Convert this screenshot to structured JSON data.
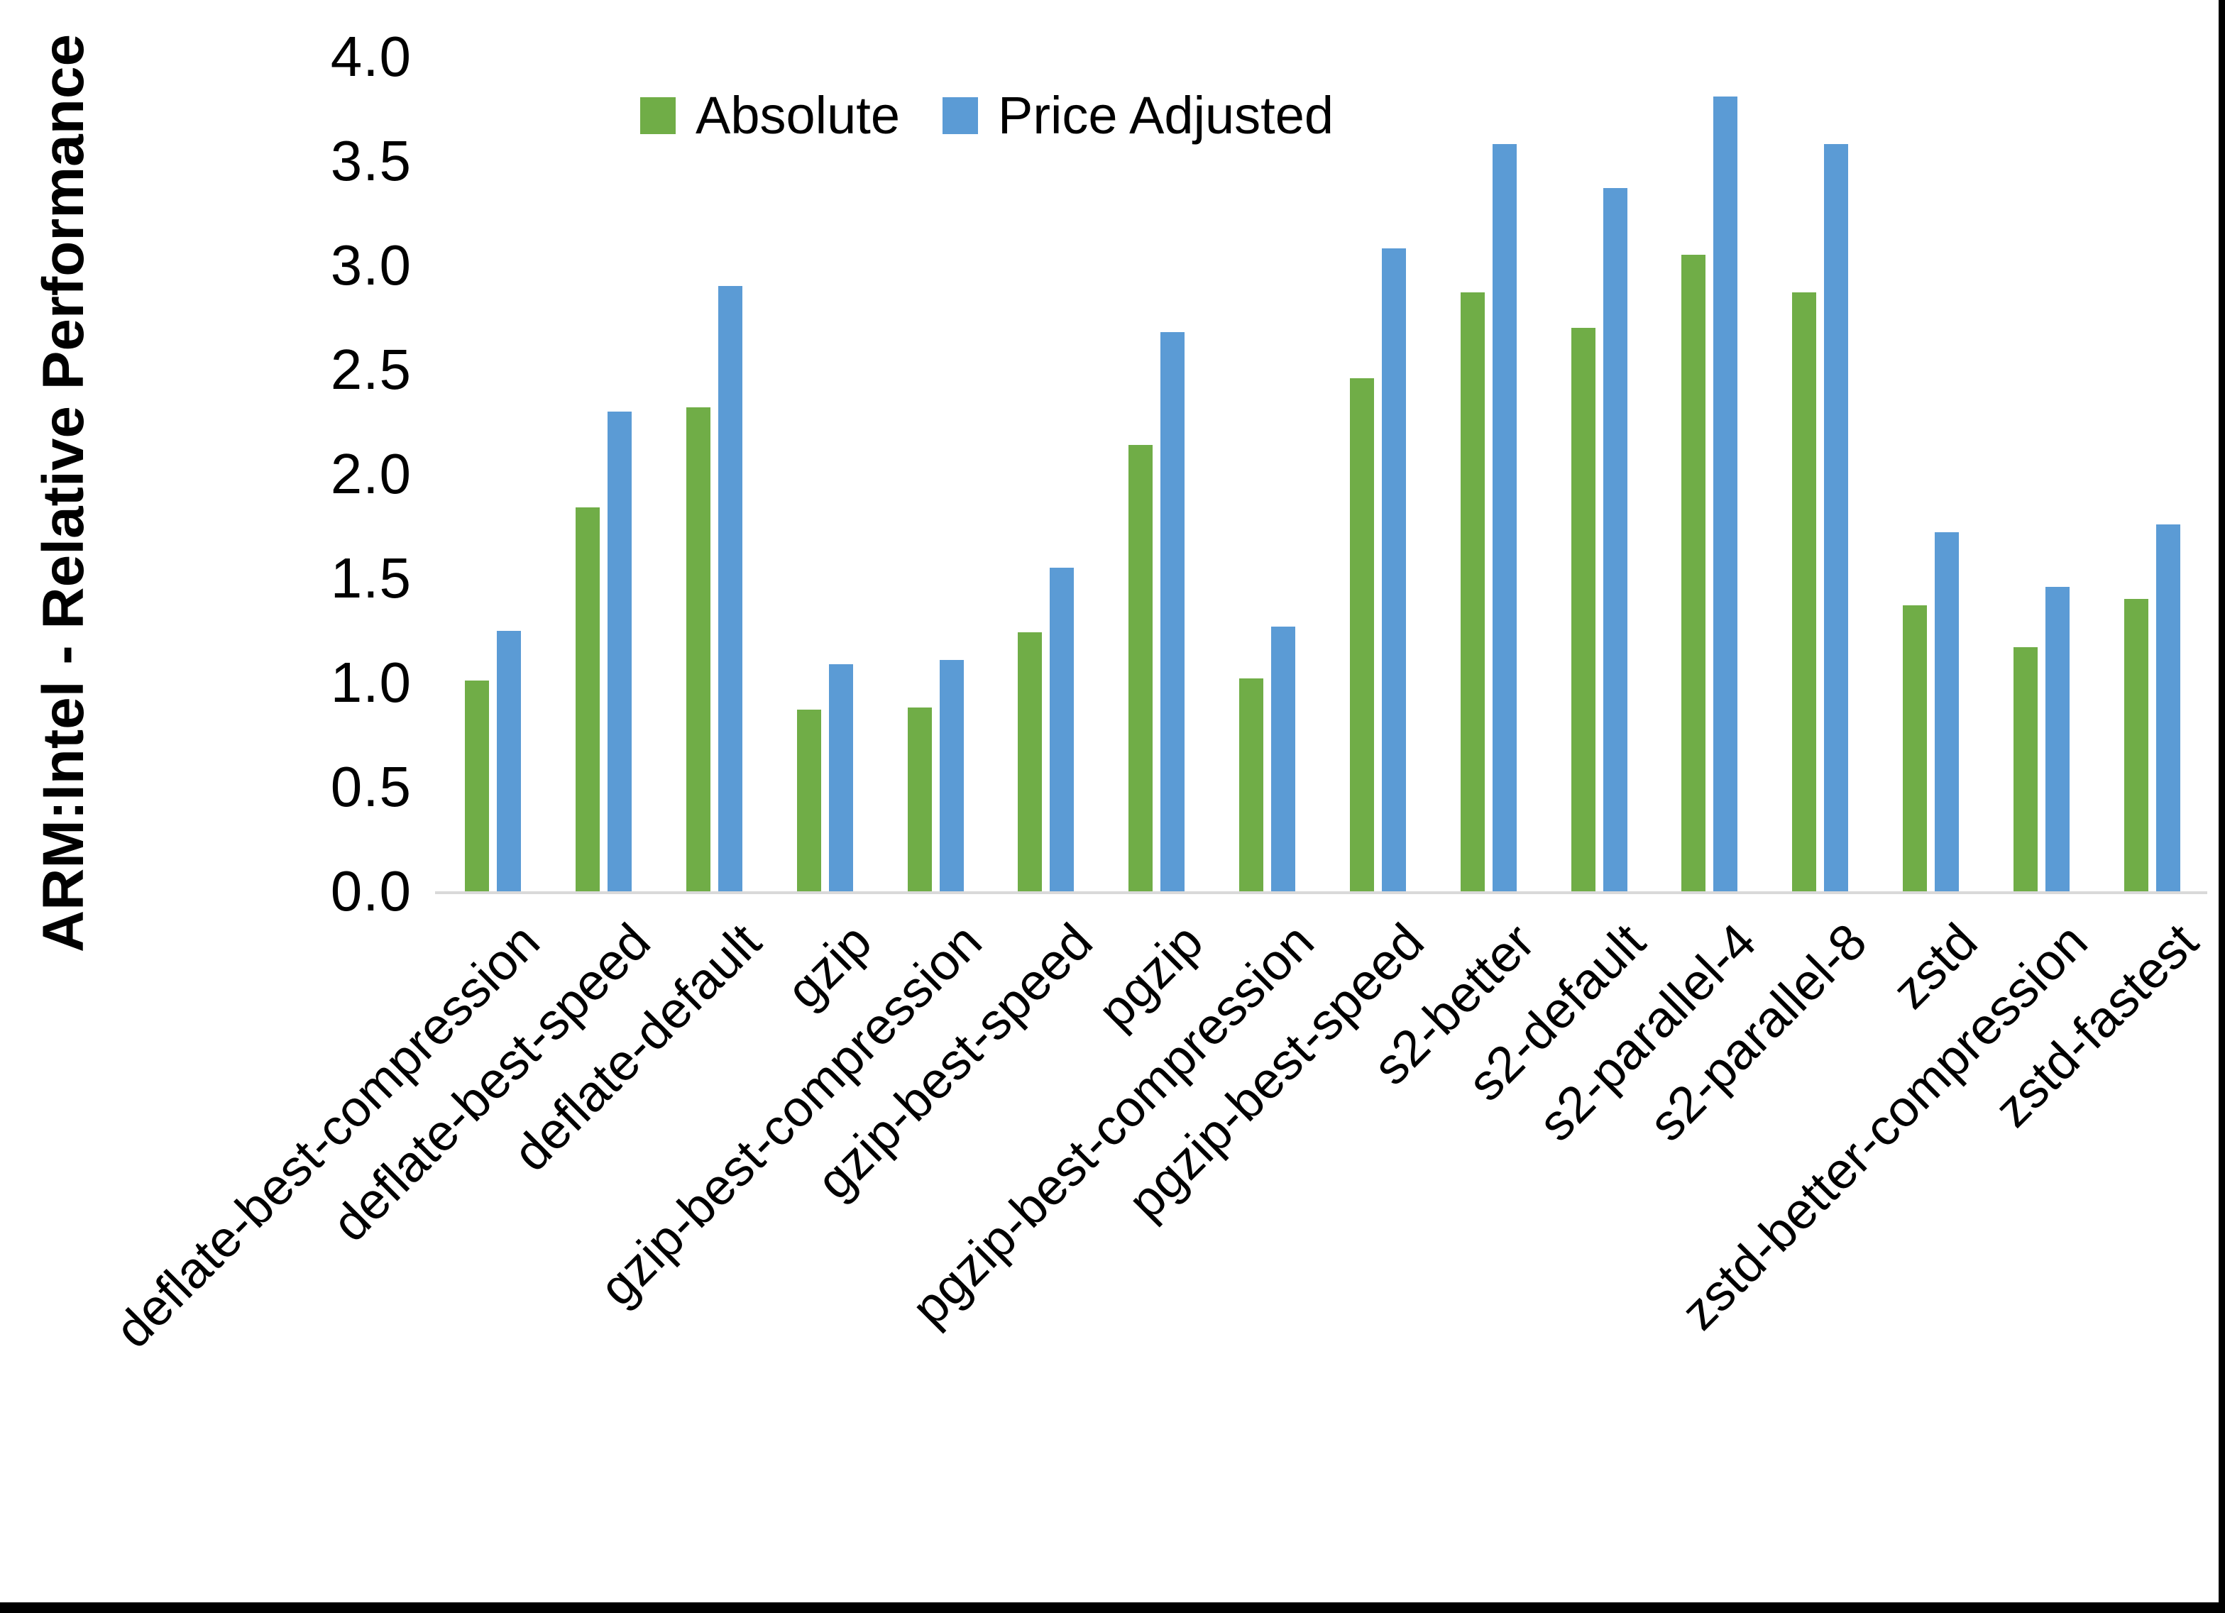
{
  "chart_data": {
    "type": "bar",
    "title": "",
    "xlabel": "",
    "ylabel": "ARM:Intel - Relative Performance",
    "ylim": [
      0.0,
      4.0
    ],
    "ytick_step": 0.5,
    "ytick_labels_top_to_bottom": [
      "4.0",
      "3.5",
      "3.0",
      "2.5",
      "2.0",
      "1.5",
      "1.0",
      "0.5",
      "0.0"
    ],
    "grid": false,
    "legend_position": "top-center-inside",
    "categories": [
      "deflate-best-compression",
      "deflate-best-speed",
      "deflate-default",
      "gzip",
      "gzip-best-compression",
      "gzip-best-speed",
      "pgzip",
      "pgzip-best-compression",
      "pgzip-best-speed",
      "s2-better",
      "s2-default",
      "s2-parallel-4",
      "s2-parallel-8",
      "zstd",
      "zstd-better-compression",
      "zstd-fastest"
    ],
    "series": [
      {
        "name": "Absolute",
        "color": "#70AD47",
        "values": [
          1.01,
          1.84,
          2.32,
          0.87,
          0.88,
          1.24,
          2.14,
          1.02,
          2.46,
          2.87,
          2.7,
          3.05,
          2.87,
          1.37,
          1.17,
          1.4
        ]
      },
      {
        "name": "Price Adjusted",
        "color": "#5B9BD5",
        "values": [
          1.25,
          2.3,
          2.9,
          1.09,
          1.11,
          1.55,
          2.68,
          1.27,
          3.08,
          3.58,
          3.37,
          3.81,
          3.58,
          1.72,
          1.46,
          1.76
        ]
      }
    ]
  },
  "colors": {
    "background": "#FFFFFF",
    "axis_line": "#D9D9D9",
    "text": "#000000",
    "frame_border": "#000000"
  }
}
